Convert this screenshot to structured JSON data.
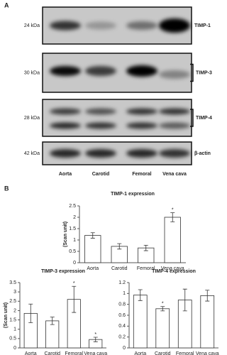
{
  "panel_a": {
    "label": "A",
    "blots": [
      {
        "size": "24 kDa",
        "protein": "TIMP-1"
      },
      {
        "size": "30 kDa",
        "protein": "TIMP-3"
      },
      {
        "size": "28 kDa",
        "protein": "TIMP-4"
      },
      {
        "size": "42 kDa",
        "protein": "β-actin"
      }
    ],
    "lanes": [
      "Aorta",
      "Carotid",
      "Femoral",
      "Vena cava"
    ]
  },
  "panel_b": {
    "label": "B"
  },
  "chart_data": [
    {
      "type": "bar",
      "title": "TIMP-1 expression",
      "ylabel": "(Scan unit)",
      "categories": [
        "Aorta",
        "Carotid",
        "Femoral",
        "Vena cava"
      ],
      "values": [
        1.2,
        0.72,
        0.65,
        2.0
      ],
      "errors": [
        0.12,
        0.12,
        0.12,
        0.2
      ],
      "color": "#ffffff",
      "ylim": [
        0,
        2.5
      ],
      "yticks": [
        0,
        0.5,
        1,
        1.5,
        2,
        2.5
      ],
      "annotations": [
        {
          "x": "Vena cava",
          "text": "*"
        }
      ]
    },
    {
      "type": "bar",
      "title": "TIMP-3 expression",
      "ylabel": "(Scan unit)",
      "categories": [
        "Aorta",
        "Carotid",
        "Femoral",
        "Vena cava"
      ],
      "values": [
        1.85,
        1.45,
        2.6,
        0.45
      ],
      "errors": [
        0.5,
        0.2,
        0.7,
        0.12
      ],
      "color": "#ffffff",
      "ylim": [
        0,
        3.5
      ],
      "yticks": [
        0,
        0.5,
        1,
        1.5,
        2,
        2.5,
        3,
        3.5
      ],
      "annotations": [
        {
          "x": "Femoral",
          "text": "*"
        },
        {
          "x": "Vena cava",
          "text": "*"
        }
      ]
    },
    {
      "type": "bar",
      "title": "TIMP-4 expression",
      "categories": [
        "Aorta",
        "Carotid",
        "Femoral",
        "Vena cava"
      ],
      "values": [
        0.97,
        0.72,
        0.88,
        0.96
      ],
      "errors": [
        0.1,
        0.04,
        0.2,
        0.1
      ],
      "color": "#ffffff",
      "ylim": [
        0,
        1.2
      ],
      "yticks": [
        0,
        0.2,
        0.4,
        0.6,
        0.8,
        1,
        1.2
      ],
      "annotations": [
        {
          "x": "Carotid",
          "text": "*"
        }
      ]
    }
  ]
}
